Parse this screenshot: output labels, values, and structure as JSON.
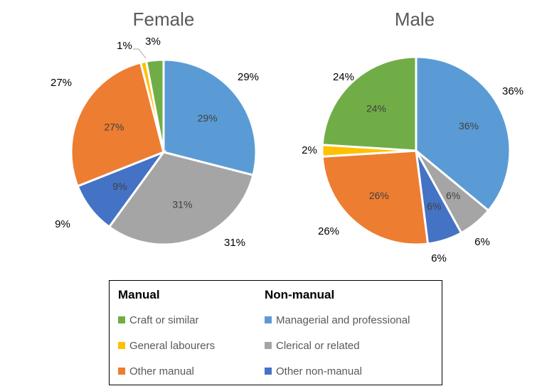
{
  "chart_data": {
    "type": "pie",
    "colors": {
      "craft": "#70ad47",
      "labourers": "#ffc000",
      "other_manual": "#ed7d31",
      "managerial": "#5b9bd5",
      "clerical": "#a5a5a5",
      "other_nonmanual": "#4472c4"
    },
    "pies": [
      {
        "title": "Female",
        "slices": [
          {
            "key": "managerial",
            "value": 29,
            "label": "29%"
          },
          {
            "key": "clerical",
            "value": 31,
            "label": "31%"
          },
          {
            "key": "other_nonmanual",
            "value": 9,
            "label": "9%"
          },
          {
            "key": "other_manual",
            "value": 27,
            "label": "27%"
          },
          {
            "key": "labourers",
            "value": 1,
            "label": "1%"
          },
          {
            "key": "craft",
            "value": 3,
            "label": "3%"
          }
        ]
      },
      {
        "title": "Male",
        "slices": [
          {
            "key": "managerial",
            "value": 36,
            "label": "36%"
          },
          {
            "key": "clerical",
            "value": 6,
            "label": "6%"
          },
          {
            "key": "other_nonmanual",
            "value": 6,
            "label": "6%"
          },
          {
            "key": "other_manual",
            "value": 26,
            "label": "26%"
          },
          {
            "key": "labourers",
            "value": 2,
            "label": "2%"
          },
          {
            "key": "craft",
            "value": 24,
            "label": "24%"
          }
        ]
      }
    ],
    "legend": {
      "groups": [
        {
          "heading": "Manual",
          "items": [
            {
              "key": "craft",
              "label": "Craft or similar"
            },
            {
              "key": "labourers",
              "label": "General labourers"
            },
            {
              "key": "other_manual",
              "label": "Other manual"
            }
          ]
        },
        {
          "heading": "Non-manual",
          "items": [
            {
              "key": "managerial",
              "label": "Managerial and professional"
            },
            {
              "key": "clerical",
              "label": "Clerical or related"
            },
            {
              "key": "other_nonmanual",
              "label": "Other non-manual"
            }
          ]
        }
      ]
    }
  }
}
